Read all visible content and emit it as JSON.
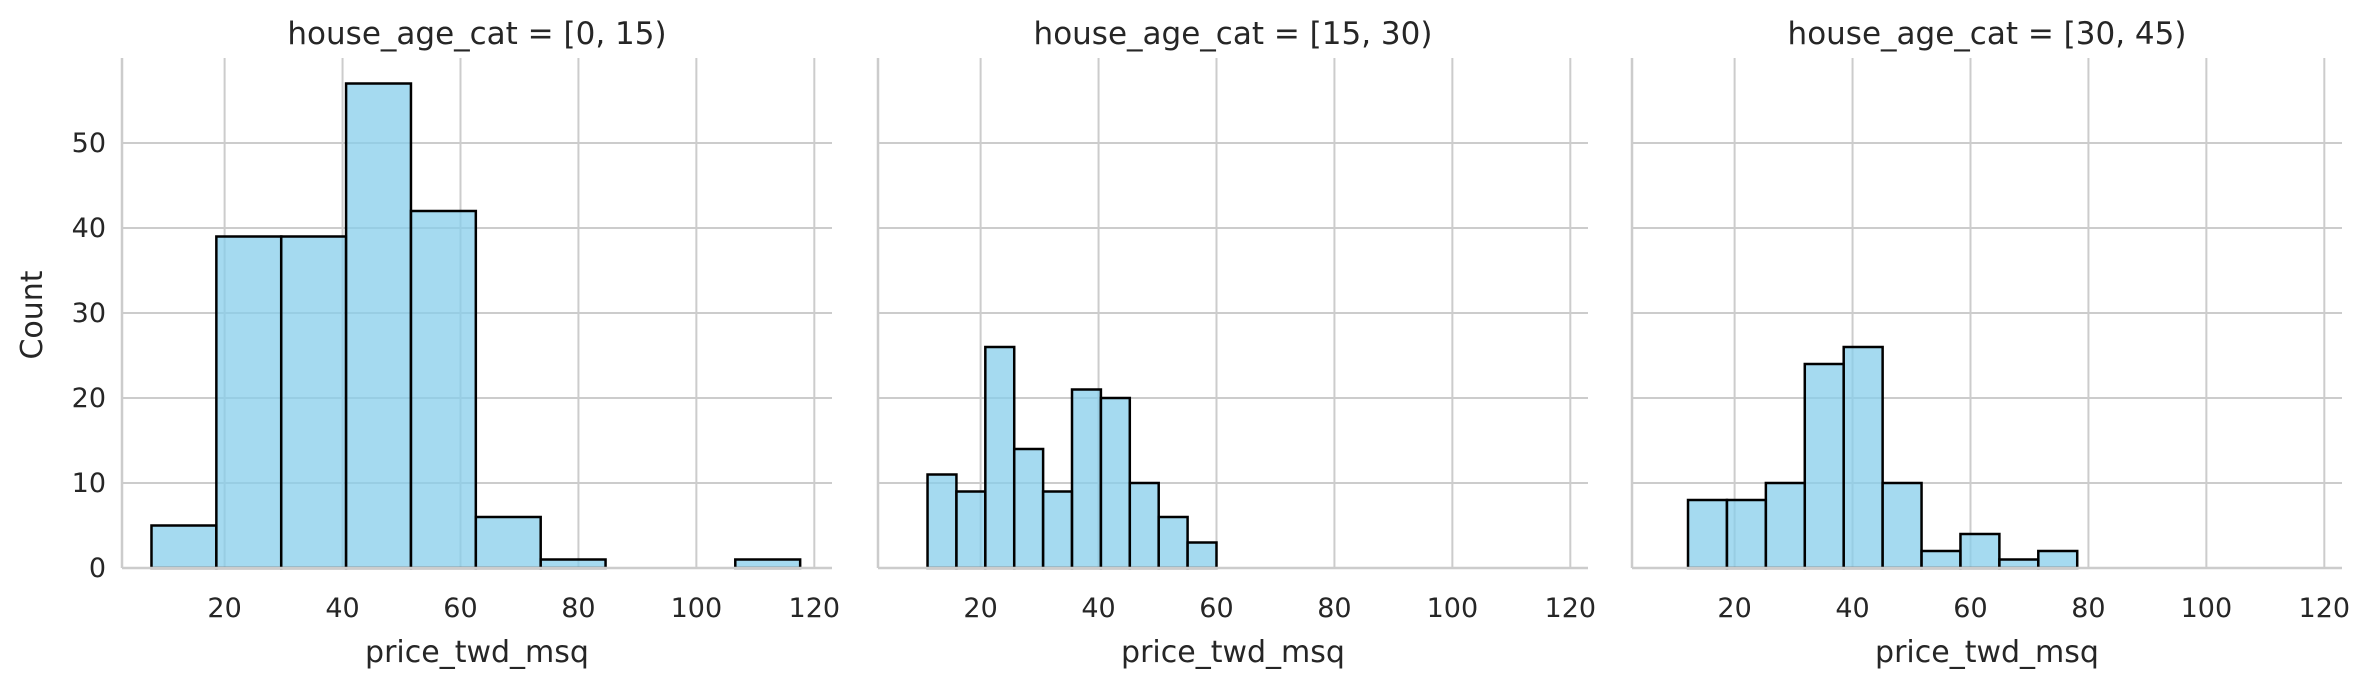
{
  "chart_data": {
    "type": "bar",
    "layout": "facet-grid-1x3",
    "ylabel": "Count",
    "xlabel": "price_twd_msq",
    "xlim": [
      2.6,
      123
    ],
    "ylim": [
      0,
      60
    ],
    "x_ticks": [
      20,
      40,
      60,
      80,
      100,
      120
    ],
    "y_ticks": [
      0,
      10,
      20,
      30,
      40,
      50
    ],
    "grid": true,
    "colors": {
      "fill": "#87ceeb",
      "edge": "#000000",
      "grid": "#cccccc"
    },
    "panels": [
      {
        "title": "house_age_cat = [0, 15)",
        "bins": [
          {
            "x0": 7.6,
            "x1": 18.6,
            "count": 5
          },
          {
            "x0": 18.6,
            "x1": 29.6,
            "count": 39
          },
          {
            "x0": 29.6,
            "x1": 40.6,
            "count": 39
          },
          {
            "x0": 40.6,
            "x1": 51.6,
            "count": 57
          },
          {
            "x0": 51.6,
            "x1": 62.6,
            "count": 42
          },
          {
            "x0": 62.6,
            "x1": 73.6,
            "count": 6
          },
          {
            "x0": 73.6,
            "x1": 84.6,
            "count": 1
          },
          {
            "x0": 84.6,
            "x1": 95.6,
            "count": 0
          },
          {
            "x0": 95.6,
            "x1": 106.6,
            "count": 0
          },
          {
            "x0": 106.6,
            "x1": 117.6,
            "count": 1
          }
        ]
      },
      {
        "title": "house_age_cat = [15, 30)",
        "bins": [
          {
            "x0": 11.0,
            "x1": 15.9,
            "count": 11
          },
          {
            "x0": 15.9,
            "x1": 20.8,
            "count": 9
          },
          {
            "x0": 20.8,
            "x1": 25.7,
            "count": 26
          },
          {
            "x0": 25.7,
            "x1": 30.6,
            "count": 14
          },
          {
            "x0": 30.6,
            "x1": 35.5,
            "count": 9
          },
          {
            "x0": 35.5,
            "x1": 40.4,
            "count": 21
          },
          {
            "x0": 40.4,
            "x1": 45.3,
            "count": 20
          },
          {
            "x0": 45.3,
            "x1": 50.2,
            "count": 10
          },
          {
            "x0": 50.2,
            "x1": 55.1,
            "count": 6
          },
          {
            "x0": 55.1,
            "x1": 60.0,
            "count": 3
          }
        ]
      },
      {
        "title": "house_age_cat = [30, 45)",
        "bins": [
          {
            "x0": 12.1,
            "x1": 18.7,
            "count": 8
          },
          {
            "x0": 18.7,
            "x1": 25.3,
            "count": 8
          },
          {
            "x0": 25.3,
            "x1": 31.9,
            "count": 10
          },
          {
            "x0": 31.9,
            "x1": 38.5,
            "count": 24
          },
          {
            "x0": 38.5,
            "x1": 45.1,
            "count": 26
          },
          {
            "x0": 45.1,
            "x1": 51.7,
            "count": 10
          },
          {
            "x0": 51.7,
            "x1": 58.3,
            "count": 2
          },
          {
            "x0": 58.3,
            "x1": 64.9,
            "count": 4
          },
          {
            "x0": 64.9,
            "x1": 71.5,
            "count": 1
          },
          {
            "x0": 71.5,
            "x1": 78.1,
            "count": 2
          }
        ]
      }
    ]
  }
}
